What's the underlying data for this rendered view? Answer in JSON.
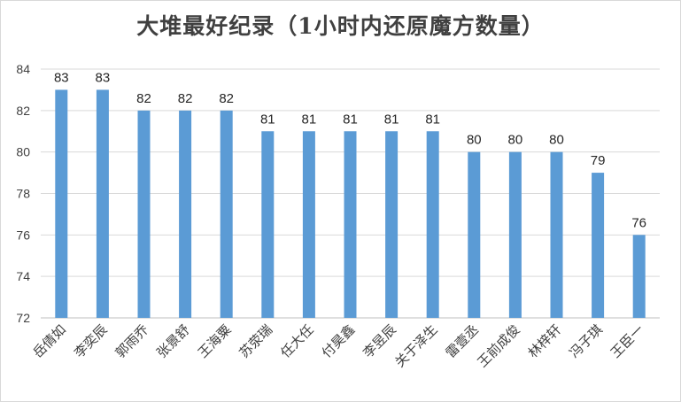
{
  "chart_data": {
    "type": "bar",
    "title": "大堆最好纪录（1小时内还原魔方数量）",
    "xlabel": "",
    "ylabel": "",
    "categories": [
      "岳倩如",
      "李奕辰",
      "郭雨乔",
      "张景舒",
      "王海粟",
      "苏荥瑞",
      "任大任",
      "付昊鑫",
      "李昱辰",
      "关于泽生",
      "雷壹丞",
      "王前成俊",
      "林梓轩",
      "冯子琪",
      "王臣一"
    ],
    "values": [
      83,
      83,
      82,
      82,
      82,
      81,
      81,
      81,
      81,
      81,
      80,
      80,
      80,
      79,
      76
    ],
    "ylim": [
      72,
      84
    ],
    "yticks": [
      72,
      74,
      76,
      78,
      80,
      82,
      84
    ],
    "grid": true,
    "legend": "none",
    "colors": {
      "bar": "#5b9bd5",
      "grid": "#d9d9d9",
      "axis": "#bfbfbf"
    }
  }
}
